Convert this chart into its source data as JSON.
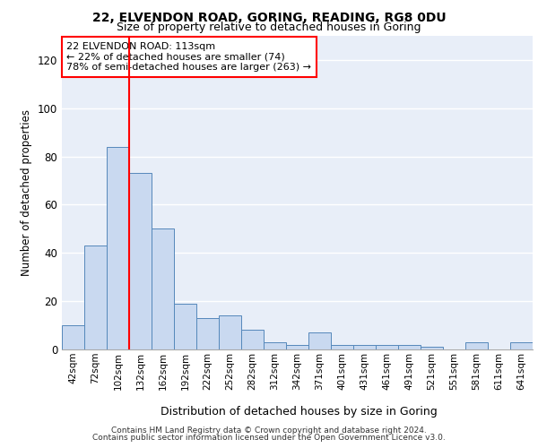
{
  "title1": "22, ELVENDON ROAD, GORING, READING, RG8 0DU",
  "title2": "Size of property relative to detached houses in Goring",
  "xlabel": "Distribution of detached houses by size in Goring",
  "ylabel": "Number of detached properties",
  "bar_labels": [
    "42sqm",
    "72sqm",
    "102sqm",
    "132sqm",
    "162sqm",
    "192sqm",
    "222sqm",
    "252sqm",
    "282sqm",
    "312sqm",
    "342sqm",
    "371sqm",
    "401sqm",
    "431sqm",
    "461sqm",
    "491sqm",
    "521sqm",
    "551sqm",
    "581sqm",
    "611sqm",
    "641sqm"
  ],
  "bar_heights": [
    10,
    43,
    84,
    73,
    50,
    19,
    13,
    14,
    8,
    3,
    2,
    7,
    2,
    2,
    2,
    2,
    1,
    0,
    3,
    0,
    3
  ],
  "bar_color": "#c9d9f0",
  "bar_edge_color": "#5588bb",
  "ylim": [
    0,
    130
  ],
  "yticks": [
    0,
    20,
    40,
    60,
    80,
    100,
    120
  ],
  "red_line_x": 2.5,
  "annotation_text": "22 ELVENDON ROAD: 113sqm\n← 22% of detached houses are smaller (74)\n78% of semi-detached houses are larger (263) →",
  "footer1": "Contains HM Land Registry data © Crown copyright and database right 2024.",
  "footer2": "Contains public sector information licensed under the Open Government Licence v3.0.",
  "background_color": "#e8eef8",
  "grid_color": "white"
}
